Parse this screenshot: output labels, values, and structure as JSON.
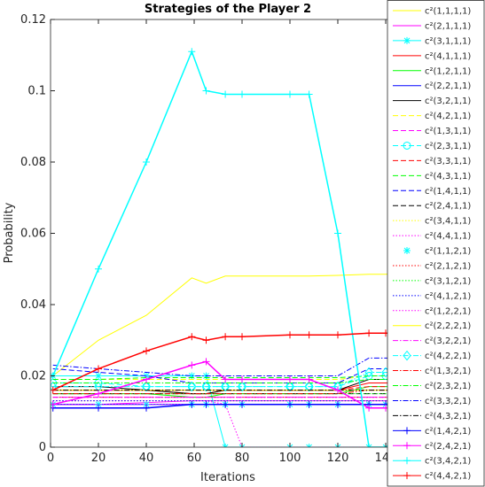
{
  "chart_data": {
    "type": "line",
    "title": "Strategies of the Player 2",
    "xlabel": "Iterations",
    "ylabel": "Probability",
    "xlim": [
      0,
      150
    ],
    "ylim": [
      0,
      0.12
    ],
    "xticks": [
      0,
      20,
      40,
      60,
      80,
      100,
      120,
      140
    ],
    "yticks": [
      0,
      0.02,
      0.04,
      0.06,
      0.08,
      0.1,
      0.12
    ],
    "x": [
      1,
      20,
      40,
      59,
      65,
      73,
      80,
      100,
      108,
      120,
      133,
      140,
      150
    ],
    "legend": "right",
    "series": [
      {
        "name": "c²(1,1,1,1)",
        "color": "#ffff00",
        "dash": "solid",
        "values": [
          0.02,
          0.03,
          0.037,
          0.0475,
          0.046,
          0.048,
          0.048,
          0.048,
          0.048,
          0.0482,
          0.0485,
          0.0485,
          0.049
        ]
      },
      {
        "name": "c²(2,1,1,1)",
        "color": "#ff00ff",
        "dash": "solid",
        "values": [
          0.012,
          0.012,
          0.0125,
          0.013,
          0.013,
          0.013,
          0.013,
          0.013,
          0.013,
          0.013,
          0.013,
          0.013,
          0.013
        ]
      },
      {
        "name": "c²(3,1,1,1)",
        "color": "#00ffff",
        "dash": "solid",
        "marker": "*",
        "values": [
          0.02,
          0.02,
          0.02,
          0.02,
          0.02,
          0,
          0,
          0,
          0,
          0,
          0,
          0,
          0
        ]
      },
      {
        "name": "c²(4,1,1,1)",
        "color": "#ff0000",
        "dash": "solid",
        "values": [
          0.016,
          0.016,
          0.016,
          0.015,
          0.015,
          0.016,
          0.016,
          0.016,
          0.016,
          0.016,
          0.018,
          0.018,
          0.018
        ]
      },
      {
        "name": "c²(1,2,1,1)",
        "color": "#00ff00",
        "dash": "solid",
        "values": [
          0.015,
          0.015,
          0.015,
          0.014,
          0.014,
          0.015,
          0.015,
          0.015,
          0.015,
          0.015,
          0.017,
          0.017,
          0.017
        ]
      },
      {
        "name": "c²(2,2,1,1)",
        "color": "#0000ff",
        "dash": "solid",
        "values": [
          0.012,
          0.012,
          0.012,
          0.012,
          0.012,
          0.012,
          0.012,
          0.012,
          0.012,
          0.012,
          0.012,
          0.012,
          0.012
        ]
      },
      {
        "name": "c²(3,2,1,1)",
        "color": "#000000",
        "dash": "solid",
        "values": [
          0.017,
          0.017,
          0.016,
          0.015,
          0.015,
          0.016,
          0.016,
          0.016,
          0.016,
          0.016,
          0.019,
          0.019,
          0.019
        ]
      },
      {
        "name": "c²(4,2,1,1)",
        "color": "#ffff00",
        "dash": "dashed",
        "values": [
          0.019,
          0.019,
          0.019,
          0.019,
          0.019,
          0.019,
          0.019,
          0.019,
          0.019,
          0.019,
          0.02,
          0.02,
          0.02
        ]
      },
      {
        "name": "c²(1,3,1,1)",
        "color": "#ff00ff",
        "dash": "dashed",
        "values": [
          0.014,
          0.014,
          0.014,
          0.014,
          0.014,
          0.014,
          0.014,
          0.014,
          0.014,
          0.014,
          0.014,
          0.014,
          0.014
        ]
      },
      {
        "name": "c²(2,3,1,1)",
        "color": "#00ffff",
        "dash": "dashed",
        "marker": "o",
        "values": [
          0.018,
          0.018,
          0.017,
          0.017,
          0.017,
          0.017,
          0.017,
          0.017,
          0.017,
          0.017,
          0.02,
          0.02,
          0.02
        ]
      },
      {
        "name": "c²(3,3,1,1)",
        "color": "#ff0000",
        "dash": "dashed",
        "values": [
          0.016,
          0.016,
          0.016,
          0.016,
          0.016,
          0.016,
          0.016,
          0.016,
          0.016,
          0.016,
          0.017,
          0.017,
          0.017
        ]
      },
      {
        "name": "c²(4,3,1,1)",
        "color": "#00ff00",
        "dash": "dashed",
        "values": [
          0.019,
          0.019,
          0.0195,
          0.0195,
          0.0195,
          0.0195,
          0.0195,
          0.0195,
          0.0195,
          0.0195,
          0.02,
          0.02,
          0.02
        ]
      },
      {
        "name": "c²(1,4,1,1)",
        "color": "#0000ff",
        "dash": "dashed",
        "values": [
          0.022,
          0.021,
          0.02,
          0.018,
          0.018,
          0.018,
          0.018,
          0.018,
          0.018,
          0.018,
          0.022,
          0.022,
          0.022
        ]
      },
      {
        "name": "c²(2,4,1,1)",
        "color": "#000000",
        "dash": "dashed",
        "values": [
          0.015,
          0.015,
          0.015,
          0.015,
          0.015,
          0.015,
          0.015,
          0.015,
          0.015,
          0.015,
          0.015,
          0.015,
          0.015
        ]
      },
      {
        "name": "c²(3,4,1,1)",
        "color": "#ffff00",
        "dash": "dotted",
        "values": [
          0.013,
          0.013,
          0.013,
          0.013,
          0.013,
          0.013,
          0.013,
          0.013,
          0.013,
          0.013,
          0.013,
          0.013,
          0.013
        ]
      },
      {
        "name": "c²(4,4,1,1)",
        "color": "#ff00ff",
        "dash": "dotted",
        "values": [
          0.013,
          0.013,
          0.013,
          0.013,
          0.013,
          0.012,
          0,
          0,
          0,
          0,
          0,
          0,
          0
        ]
      },
      {
        "name": "c²(1,1,2,1)",
        "color": "#00ffff",
        "dash": "none",
        "marker": "*",
        "values": [
          0.012,
          0.012,
          0.012,
          0.012,
          0.012,
          0.012,
          0.012,
          0.012,
          0.012,
          0.012,
          0.012,
          0.012,
          0.012
        ]
      },
      {
        "name": "c²(2,1,2,1)",
        "color": "#ff0000",
        "dash": "dotted",
        "values": [
          0.014,
          0.014,
          0.014,
          0.014,
          0.014,
          0.014,
          0.014,
          0.014,
          0.014,
          0.014,
          0.014,
          0.014,
          0.014
        ]
      },
      {
        "name": "c²(3,1,2,1)",
        "color": "#00ff00",
        "dash": "dotted",
        "values": [
          0.015,
          0.015,
          0.015,
          0.015,
          0.015,
          0.015,
          0.015,
          0.015,
          0.015,
          0.015,
          0.015,
          0.015,
          0.015
        ]
      },
      {
        "name": "c²(4,1,2,1)",
        "color": "#0000ff",
        "dash": "dotted",
        "values": [
          0.013,
          0.013,
          0.013,
          0.013,
          0.013,
          0.013,
          0.013,
          0.013,
          0.013,
          0.013,
          0.013,
          0.013,
          0.013
        ]
      },
      {
        "name": "c²(1,2,2,1)",
        "color": "#ff00ff",
        "dash": "dotted",
        "values": [
          0.012,
          0.012,
          0.012,
          0.012,
          0.012,
          0.012,
          0.012,
          0.012,
          0.012,
          0.012,
          0.012,
          0.012,
          0.012
        ]
      },
      {
        "name": "c²(2,2,2,1)",
        "color": "#ffff00",
        "dash": "solid",
        "values": [
          0.016,
          0.016,
          0.016,
          0.016,
          0.016,
          0.016,
          0.016,
          0.016,
          0.016,
          0.016,
          0.016,
          0.016,
          0.016
        ]
      },
      {
        "name": "c²(3,2,2,1)",
        "color": "#ff00ff",
        "dash": "dashdot",
        "values": [
          0.014,
          0.014,
          0.014,
          0.014,
          0.014,
          0.014,
          0.014,
          0.014,
          0.014,
          0.014,
          0.014,
          0.014,
          0.014
        ]
      },
      {
        "name": "c²(4,2,2,1)",
        "color": "#00ffff",
        "dash": "dashdot",
        "marker": "d",
        "values": [
          0.017,
          0.017,
          0.017,
          0.017,
          0.017,
          0.017,
          0.017,
          0.017,
          0.017,
          0.017,
          0.021,
          0.021,
          0.021
        ]
      },
      {
        "name": "c²(1,3,2,1)",
        "color": "#ff0000",
        "dash": "dashdot",
        "values": [
          0.015,
          0.015,
          0.015,
          0.015,
          0.015,
          0.015,
          0.015,
          0.015,
          0.015,
          0.015,
          0.016,
          0.016,
          0.016
        ]
      },
      {
        "name": "c²(2,3,2,1)",
        "color": "#00ff00",
        "dash": "dashdot",
        "values": [
          0.018,
          0.018,
          0.018,
          0.018,
          0.018,
          0.018,
          0.018,
          0.018,
          0.018,
          0.018,
          0.019,
          0.019,
          0.019
        ]
      },
      {
        "name": "c²(3,3,2,1)",
        "color": "#0000ff",
        "dash": "dashdot",
        "values": [
          0.023,
          0.022,
          0.021,
          0.02,
          0.02,
          0.02,
          0.02,
          0.02,
          0.02,
          0.02,
          0.025,
          0.025,
          0.025
        ]
      },
      {
        "name": "c²(4,3,2,1)",
        "color": "#000000",
        "dash": "dashdot",
        "values": [
          0.016,
          0.016,
          0.016,
          0.016,
          0.016,
          0.016,
          0.016,
          0.016,
          0.016,
          0.016,
          0.016,
          0.016,
          0.016
        ]
      },
      {
        "name": "c²(1,4,2,1)",
        "color": "#0000ff",
        "dash": "solid",
        "marker": "+",
        "values": [
          0.011,
          0.011,
          0.011,
          0.012,
          0.012,
          0.012,
          0.012,
          0.012,
          0.012,
          0.012,
          0.012,
          0.012,
          0.012
        ]
      },
      {
        "name": "c²(2,4,2,1)",
        "color": "#ff00ff",
        "dash": "solid",
        "marker": "+",
        "values": [
          0.012,
          0.015,
          0.019,
          0.023,
          0.024,
          0.019,
          0.019,
          0.019,
          0.019,
          0.016,
          0.011,
          0.011,
          0.011
        ]
      },
      {
        "name": "c²(3,4,2,1)",
        "color": "#00ffff",
        "dash": "solid",
        "marker": "+",
        "values": [
          0.02,
          0.05,
          0.08,
          0.111,
          0.1,
          0.099,
          0.099,
          0.099,
          0.099,
          0.06,
          0,
          0,
          0
        ]
      },
      {
        "name": "c²(4,4,2,1)",
        "color": "#ff0000",
        "dash": "solid",
        "marker": "+",
        "values": [
          0.016,
          0.022,
          0.027,
          0.031,
          0.03,
          0.031,
          0.031,
          0.0315,
          0.0315,
          0.0315,
          0.032,
          0.032,
          0.032
        ]
      }
    ]
  }
}
